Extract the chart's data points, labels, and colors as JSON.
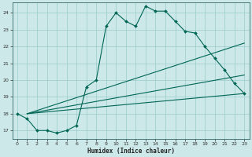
{
  "xlabel": "Humidex (Indice chaleur)",
  "bg_color": "#cce8e8",
  "grid_color": "#99cccc",
  "line_color": "#006655",
  "xlim": [
    -0.5,
    23.5
  ],
  "ylim": [
    16.5,
    24.6
  ],
  "xticks": [
    0,
    1,
    2,
    3,
    4,
    5,
    6,
    7,
    8,
    9,
    10,
    11,
    12,
    13,
    14,
    15,
    16,
    17,
    18,
    19,
    20,
    21,
    22,
    23
  ],
  "yticks": [
    17,
    18,
    19,
    20,
    21,
    22,
    23,
    24
  ],
  "line1_x": [
    0,
    1,
    2,
    3,
    4,
    5,
    6,
    7,
    8,
    9,
    10,
    11,
    12,
    13,
    14,
    15,
    16,
    17,
    18,
    19,
    20,
    21,
    22,
    23
  ],
  "line1_y": [
    18.0,
    17.7,
    17.0,
    17.0,
    16.85,
    17.0,
    17.3,
    19.6,
    20.0,
    23.2,
    24.0,
    23.5,
    23.2,
    24.4,
    24.1,
    24.1,
    23.5,
    22.9,
    22.8,
    22.0,
    21.3,
    20.6,
    19.8,
    19.2
  ],
  "line2_x": [
    1,
    23
  ],
  "line2_y": [
    18.0,
    22.2
  ],
  "line3_x": [
    1,
    23
  ],
  "line3_y": [
    18.0,
    20.3
  ],
  "line4_x": [
    1,
    23
  ],
  "line4_y": [
    18.0,
    19.2
  ]
}
